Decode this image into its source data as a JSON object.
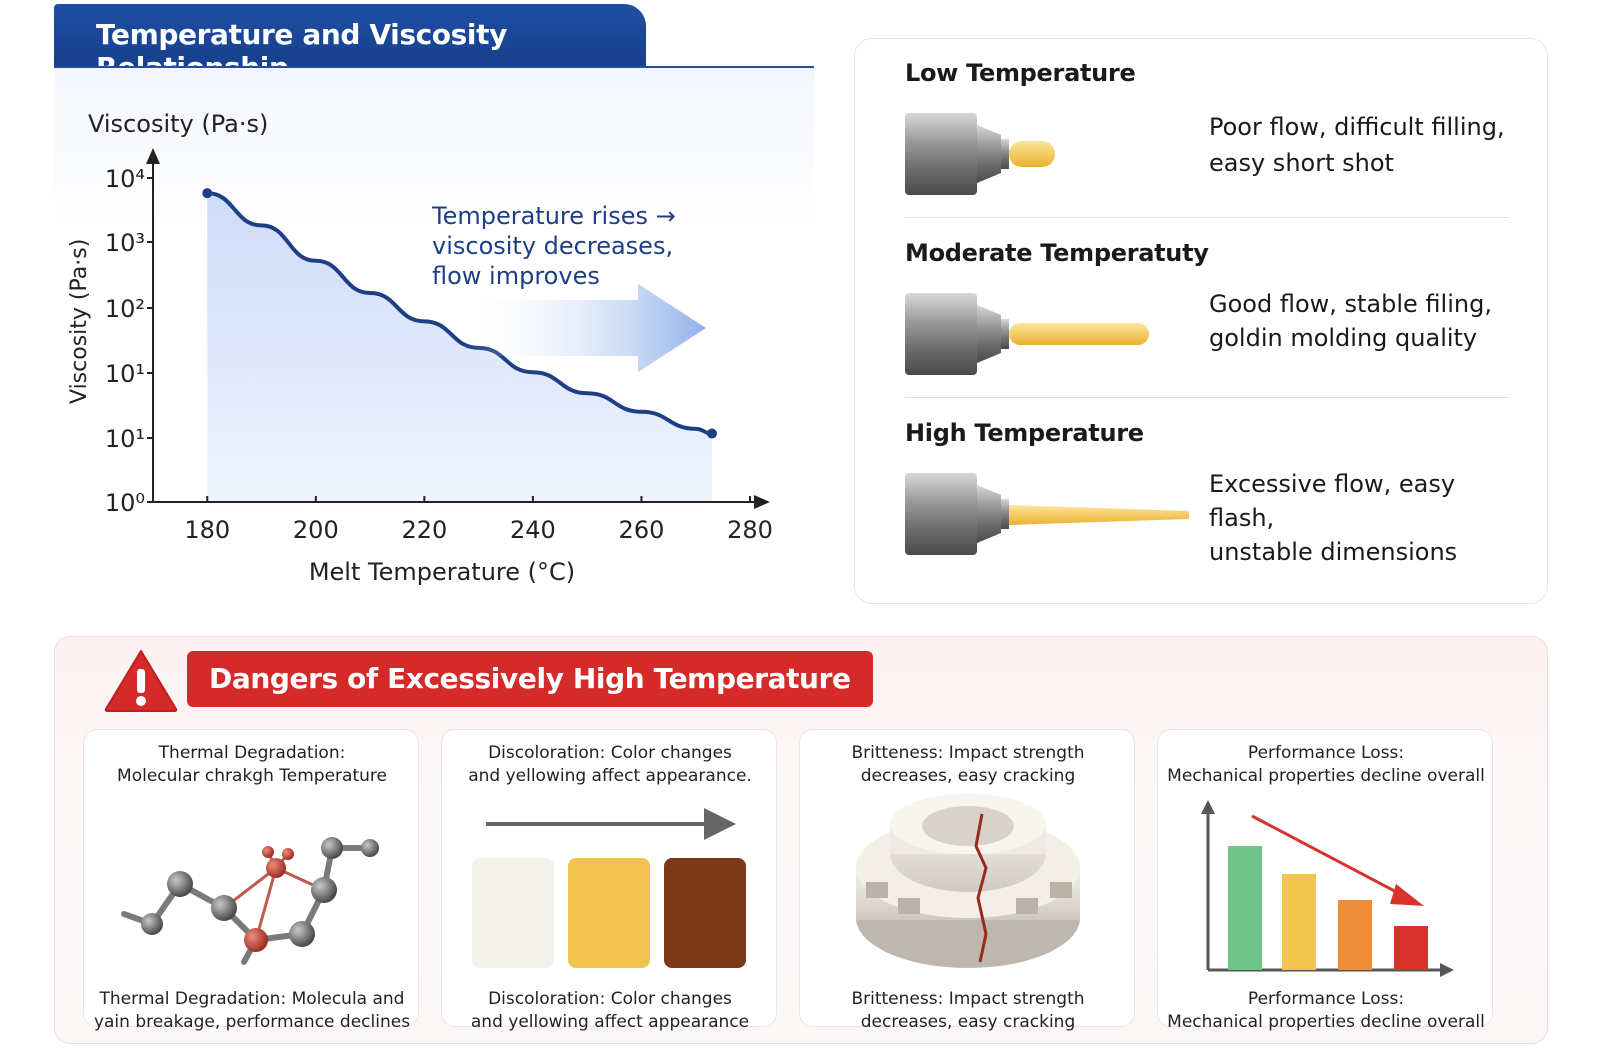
{
  "header": {
    "title": "Temperature and Viscosity Relationship"
  },
  "chart_data": {
    "type": "line",
    "title": "",
    "ylabel_top": "Viscosity (Pa·s)",
    "ylabel_side": "Viscosity (Pa·s)",
    "xlabel": "Melt Temperature (°C)",
    "x_ticks": [
      "180",
      "200",
      "220",
      "240",
      "260",
      "280"
    ],
    "y_ticks": [
      "10⁴",
      "10³",
      "10²",
      "10¹",
      "10¹",
      "10⁰"
    ],
    "y_scale": "log",
    "xlim": [
      170,
      280
    ],
    "series": [
      {
        "x": [
          180,
          190,
          200,
          210,
          220,
          230,
          240,
          250,
          260,
          270,
          273
        ],
        "y": [
          6500,
          2600,
          950,
          380,
          170,
          80,
          40,
          22,
          13,
          8,
          7
        ]
      }
    ],
    "annotation": {
      "line1": "Temperature rises →",
      "line2": "viscosity decreases,",
      "line3": "flow improves"
    },
    "colors": {
      "line": "#1e3f85",
      "fill": "#dbe6fb",
      "arrow": "#8fb0ea"
    }
  },
  "temperatures": [
    {
      "title": "Low Temperature",
      "desc1": "Poor flow, difficult filling,",
      "desc2": "easy short shot",
      "flow_length": 0.15
    },
    {
      "title": "Moderate Temperatuty",
      "desc1": "Good flow, stable filing,",
      "desc2": "goldin molding quality",
      "flow_length": 0.6
    },
    {
      "title": "High Temperature",
      "desc1": "Excessive flow, easy flash,",
      "desc2": "unstable dimensions",
      "flow_length": 1.0
    }
  ],
  "dangers": {
    "title": "Dangers of Excessively High Temperature",
    "cards": [
      {
        "top1": "Thermal Degradation:",
        "top2": "Molecular chrakgh Temperature",
        "bottom1": "Thermal Degradation: Molecula and",
        "bottom2": "yain breakage, performance declines",
        "icon": "molecule-icon"
      },
      {
        "top1": "Discoloration: Color changes",
        "top2": "and yellowing affect appearance.",
        "bottom1": "Discoloration: Color changes",
        "bottom2": "and yellowing affect appearance",
        "icon": "color-swatches-icon",
        "swatch_colors": [
          "#f4f1ea",
          "#f2c24f",
          "#7a3a18"
        ]
      },
      {
        "top1": "Britteness: Impact strength",
        "top2": "decreases, easy cracking",
        "bottom1": "Britteness: Impact strength",
        "bottom2": "decreases, easy cracking",
        "icon": "cracked-part-icon"
      },
      {
        "top1": "Performance Loss:",
        "top2": "Mechanical properties decline overall",
        "bottom1": "Performance Loss:",
        "bottom2": "Mechanical properties decline overall",
        "icon": "declining-bars-icon",
        "bar_colors": [
          "#6fc487",
          "#f2c64e",
          "#ef8c3a",
          "#d8322c"
        ]
      }
    ]
  }
}
